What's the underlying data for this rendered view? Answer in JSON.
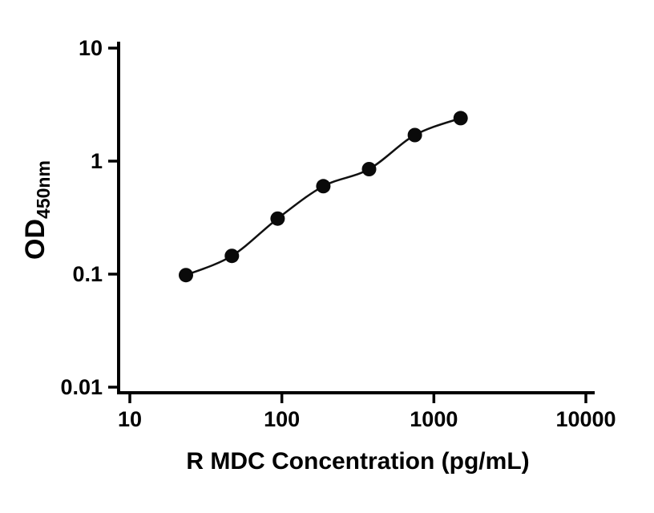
{
  "chart_data": {
    "type": "scatter",
    "subtype": "standard-curve-with-fit-line",
    "title": "",
    "xlabel": "R MDC Concentration (pg/mL)",
    "ylabel_main": "OD",
    "ylabel_sub": "450nm",
    "xscale": "log",
    "yscale": "log",
    "xlim": [
      10,
      10000
    ],
    "ylim": [
      0.01,
      10
    ],
    "xticks": [
      10,
      100,
      1000,
      10000
    ],
    "xtick_labels": [
      "10",
      "100",
      "1000",
      "10000"
    ],
    "yticks": [
      0.01,
      0.1,
      1,
      10
    ],
    "ytick_labels": [
      "0.01",
      "0.1",
      "1",
      "10"
    ],
    "x": [
      23.4,
      46.9,
      93.8,
      187.5,
      375,
      750,
      1500
    ],
    "y": [
      0.098,
      0.145,
      0.31,
      0.6,
      0.85,
      1.7,
      2.4
    ],
    "grid": false,
    "legend": "none",
    "marker_color": "#0a0a0a",
    "line_color": "#111111",
    "axis_color": "#000000",
    "background": "#ffffff"
  }
}
